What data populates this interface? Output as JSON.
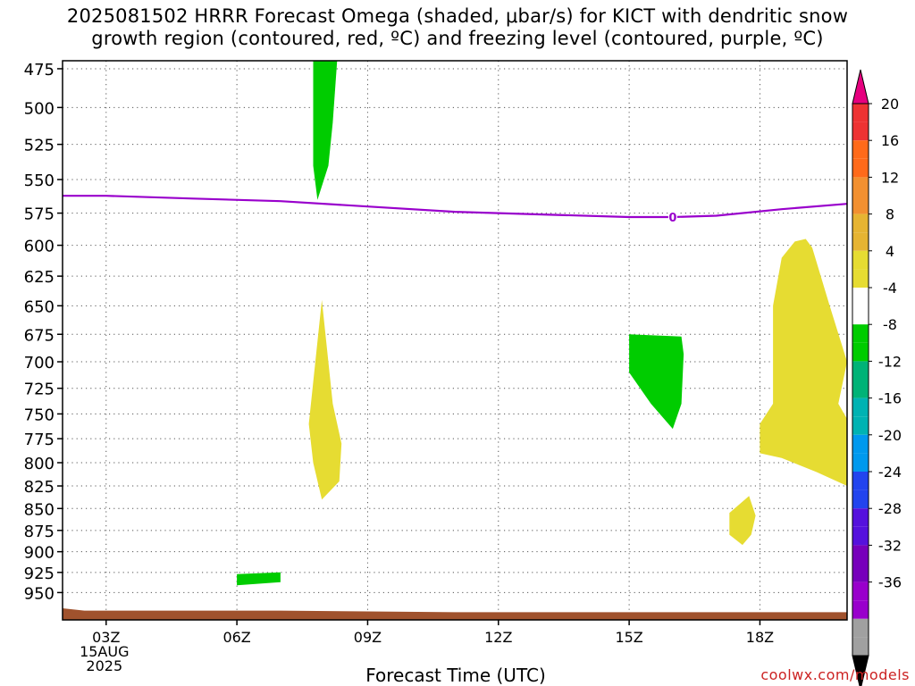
{
  "chart_data": {
    "type": "heatmap",
    "title_lines": [
      "2025081502 HRRR Forecast Omega (shaded, μbar/s) for KICT with dendritic snow",
      "growth region (contoured, red, ºC) and freezing level (contoured, purple, ºC)"
    ],
    "xlabel": "Forecast Time (UTC)",
    "x_range_hours": [
      2,
      20
    ],
    "x_ticks": [
      {
        "h": 3,
        "label": "03Z",
        "sub": [
          "15AUG",
          "2025"
        ]
      },
      {
        "h": 6,
        "label": "06Z"
      },
      {
        "h": 9,
        "label": "09Z"
      },
      {
        "h": 12,
        "label": "12Z"
      },
      {
        "h": 15,
        "label": "15Z"
      },
      {
        "h": 18,
        "label": "18Z"
      }
    ],
    "y_axis": {
      "type": "log",
      "reversed": true,
      "range_hpa": [
        470,
        985
      ]
    },
    "y_ticks": [
      475,
      500,
      525,
      550,
      575,
      600,
      625,
      650,
      675,
      700,
      725,
      750,
      775,
      800,
      825,
      850,
      875,
      900,
      925,
      950
    ],
    "grid": true,
    "freezing_level": {
      "label": "0",
      "color": "#9900cc",
      "points": [
        [
          2,
          562
        ],
        [
          3,
          562
        ],
        [
          5,
          564
        ],
        [
          7,
          566
        ],
        [
          9,
          570
        ],
        [
          11,
          574
        ],
        [
          13,
          576
        ],
        [
          15,
          578
        ],
        [
          16,
          578
        ],
        [
          17,
          577
        ],
        [
          18.5,
          572
        ],
        [
          20,
          568
        ]
      ],
      "label_at": [
        16,
        578
      ]
    },
    "omega_regions": [
      {
        "level": "-4 to -8",
        "color": "#00cc00",
        "points": [
          [
            8.0,
            470
          ],
          [
            8.3,
            470
          ],
          [
            8.2,
            510
          ],
          [
            8.1,
            540
          ],
          [
            7.85,
            565
          ],
          [
            7.75,
            540
          ],
          [
            7.75,
            470
          ]
        ]
      },
      {
        "level": "4 to 8",
        "color": "#e6dc32",
        "points": [
          [
            7.95,
            645
          ],
          [
            8.2,
            740
          ],
          [
            8.4,
            780
          ],
          [
            8.35,
            820
          ],
          [
            7.95,
            840
          ],
          [
            7.75,
            800
          ],
          [
            7.65,
            760
          ],
          [
            7.8,
            700
          ]
        ]
      },
      {
        "level": "-4 to -8",
        "color": "#00cc00",
        "points": [
          [
            15.0,
            675
          ],
          [
            16.2,
            677
          ],
          [
            16.25,
            693
          ],
          [
            16.2,
            740
          ],
          [
            16.0,
            765
          ],
          [
            15.5,
            740
          ],
          [
            15.0,
            710
          ]
        ]
      },
      {
        "level": "4 to 8",
        "color": "#e6dc32",
        "points": [
          [
            17.75,
            836
          ],
          [
            17.9,
            858
          ],
          [
            17.8,
            880
          ],
          [
            17.6,
            892
          ],
          [
            17.3,
            880
          ],
          [
            17.3,
            855
          ]
        ]
      },
      {
        "level": "4 to 8",
        "color": "#e6dc32",
        "points": [
          [
            19.05,
            595
          ],
          [
            19.2,
            602
          ],
          [
            19.6,
            650
          ],
          [
            20,
            700
          ],
          [
            19.8,
            740
          ],
          [
            20,
            755
          ],
          [
            20,
            825
          ],
          [
            19.3,
            810
          ],
          [
            18.5,
            795
          ],
          [
            18.0,
            790
          ],
          [
            18.0,
            760
          ],
          [
            18.3,
            740
          ],
          [
            18.3,
            650
          ],
          [
            18.5,
            610
          ],
          [
            18.8,
            597
          ]
        ]
      },
      {
        "level": "-4 to -8",
        "color": "#00cc00",
        "points": [
          [
            6.0,
            927
          ],
          [
            7.0,
            925
          ],
          [
            7.0,
            937
          ],
          [
            6.0,
            941
          ]
        ]
      }
    ],
    "ground": {
      "color": "#a0522d",
      "points": [
        [
          2,
          970
        ],
        [
          2.5,
          973
        ],
        [
          7,
          973
        ],
        [
          9,
          974
        ],
        [
          11,
          975
        ],
        [
          20,
          975
        ],
        [
          20,
          985
        ],
        [
          2,
          985
        ]
      ]
    },
    "colorbar": {
      "labels": [
        "20",
        "16",
        "12",
        "8",
        "4",
        "-4",
        "-8",
        "-12",
        "-16",
        "-20",
        "-24",
        "-28",
        "-32",
        "-36"
      ],
      "colors": [
        "#e6007f",
        "#ee3333",
        "#ff6a1a",
        "#f29030",
        "#e6b432",
        "#e6dc32",
        "#ffffff",
        "#00cc00",
        "#00b377",
        "#00b3b3",
        "#0099ee",
        "#2244ee",
        "#5511dd",
        "#7700bb",
        "#9900cc",
        "#a0a0a0",
        "#000000"
      ]
    }
  },
  "credit": "coolwx.com/models"
}
